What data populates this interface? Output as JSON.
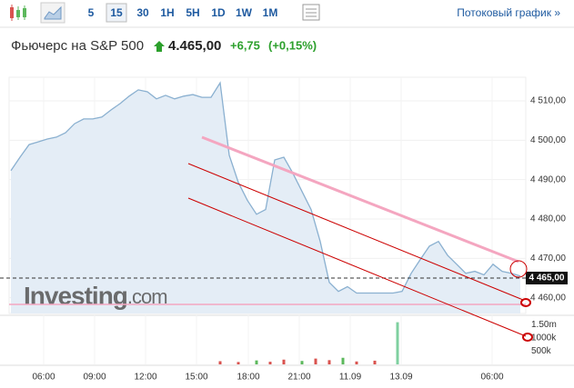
{
  "toolbar": {
    "intervals": [
      "5",
      "15",
      "30",
      "1H",
      "5H",
      "1D",
      "1W",
      "1M"
    ],
    "stream_link": "Потоковый график »"
  },
  "header": {
    "title": "Фьючерс на S&P 500",
    "price": "4.465,00",
    "change": "+6,75",
    "change_percent": "(+0,15%)"
  },
  "chart_data": {
    "type": "area",
    "color": "#8ab0d0",
    "fill": "#e4edf6",
    "x": [
      0,
      1,
      2,
      3,
      4,
      5,
      6,
      7,
      8,
      9,
      10,
      11,
      12,
      13,
      14,
      15,
      16,
      17,
      18,
      19,
      20,
      21,
      22,
      23,
      24,
      25,
      26,
      27,
      28,
      29,
      30,
      31,
      32,
      33,
      34,
      35,
      36,
      37,
      38,
      39,
      40,
      41,
      42,
      43,
      44,
      45,
      46,
      47,
      48,
      49,
      50,
      51,
      52,
      53,
      54,
      55,
      56
    ],
    "values": [
      4492.3,
      4495.7,
      4498.9,
      4499.6,
      4500.3,
      4500.8,
      4501.9,
      4504.2,
      4505.4,
      4505.4,
      4505.9,
      4507.7,
      4509.3,
      4511.2,
      4512.8,
      4512.3,
      4510.5,
      4511.4,
      4510.5,
      4511.2,
      4511.6,
      4510.9,
      4510.9,
      4514.6,
      4496.2,
      4489.3,
      4484.7,
      4481.2,
      4482.4,
      4495.0,
      4495.7,
      4491.6,
      4487.0,
      4482.4,
      4474.3,
      4463.9,
      4461.6,
      4462.8,
      4461.2,
      4461.2,
      4461.2,
      4461.2,
      4461.2,
      4461.6,
      4466.2,
      4469.7,
      4473.1,
      4474.3,
      4470.8,
      4468.5,
      4466.2,
      4466.7,
      4465.8,
      4468.5,
      4466.7,
      4466.2,
      4465.5
    ],
    "xlim": [
      -0.2,
      56.6
    ],
    "xticks": [
      {
        "value": 3.6,
        "label": "06:00"
      },
      {
        "value": 9.2,
        "label": "09:00"
      },
      {
        "value": 14.8,
        "label": "12:00"
      },
      {
        "value": 20.4,
        "label": "15:00"
      },
      {
        "value": 26.1,
        "label": "18:00"
      },
      {
        "value": 31.7,
        "label": "21:00"
      },
      {
        "value": 37.3,
        "label": "11.09"
      },
      {
        "value": 42.9,
        "label": "13.09"
      },
      {
        "value": 52.9,
        "label": "06:00"
      }
    ],
    "ylim": [
      4456,
      4516
    ],
    "yticks": [
      {
        "value": 4510,
        "label": "4 510,00"
      },
      {
        "value": 4500,
        "label": "4 500,00"
      },
      {
        "value": 4490,
        "label": "4 490,00"
      },
      {
        "value": 4480,
        "label": "4 480,00"
      },
      {
        "value": 4470,
        "label": "4 470,00"
      },
      {
        "value": 4460,
        "label": "4 460,00"
      }
    ],
    "last_price": {
      "value": 4465,
      "label": "4 465,00"
    },
    "grid": true,
    "volume": {
      "x": [
        23,
        25,
        27,
        28.5,
        30,
        32,
        33.5,
        35,
        36.5,
        38,
        40,
        42.5
      ],
      "values": [
        120000,
        90000,
        150000,
        100000,
        180000,
        130000,
        220000,
        160000,
        250000,
        110000,
        140000,
        1600000
      ],
      "colors": [
        "#d9534f",
        "#d9534f",
        "#5cb85c",
        "#d9534f",
        "#d9534f",
        "#5cb85c",
        "#d9534f",
        "#d9534f",
        "#5cb85c",
        "#d9534f",
        "#d9534f",
        "#7fd0a0"
      ],
      "ylim": [
        0,
        1500000
      ],
      "yticks": [
        {
          "value": 1500000,
          "label": "1.50m"
        },
        {
          "value": 1000000,
          "label": "1000k"
        },
        {
          "value": 500000,
          "label": "500k"
        }
      ]
    },
    "watermark": "Investing",
    "watermark_suffix": ".com"
  }
}
